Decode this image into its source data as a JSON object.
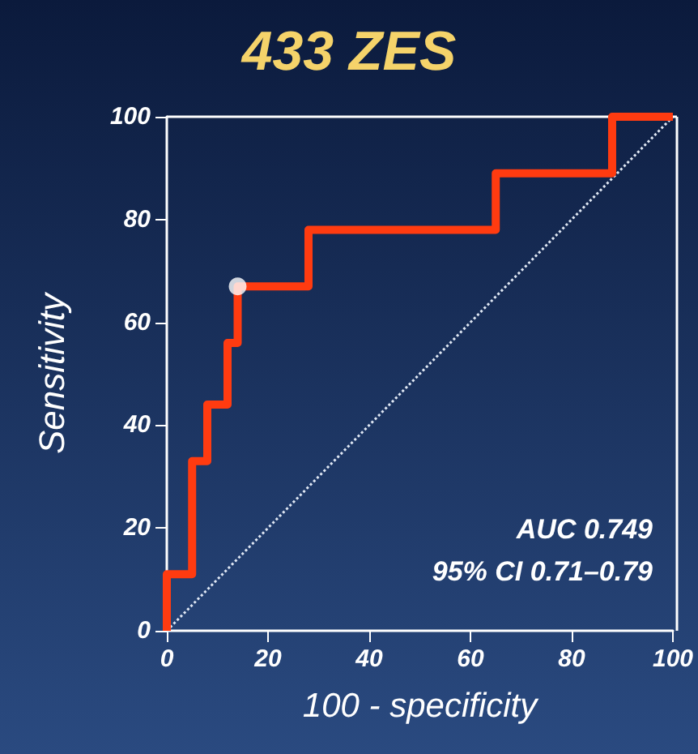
{
  "chart_data": {
    "type": "step",
    "title": "433 ZES",
    "xlabel": "100 - specificity",
    "ylabel": "Sensitivity",
    "xlim": [
      0,
      100
    ],
    "ylim": [
      0,
      100
    ],
    "xticks": [
      0,
      20,
      40,
      60,
      80,
      100
    ],
    "yticks": [
      0,
      20,
      40,
      60,
      80,
      100
    ],
    "grid": false,
    "series": [
      {
        "color": "#ff3b10",
        "x": [
          0,
          0,
          5,
          8,
          12,
          14,
          28,
          65,
          88,
          100
        ],
        "values": [
          0,
          11,
          33,
          44,
          56,
          67,
          78,
          89,
          100,
          100
        ],
        "marker": "none"
      },
      {
        "type": "line",
        "color": "#e0e8f4",
        "x": [
          0,
          100
        ],
        "values": [
          0,
          100
        ],
        "line_style": "dotted",
        "marker": "none"
      },
      {
        "type": "scatter",
        "color": "#ffffff",
        "x": [
          14
        ],
        "values": [
          67
        ],
        "marker": "circle"
      }
    ],
    "annotations": [
      "AUC 0.749",
      "95% CI 0.71–0.79"
    ]
  }
}
